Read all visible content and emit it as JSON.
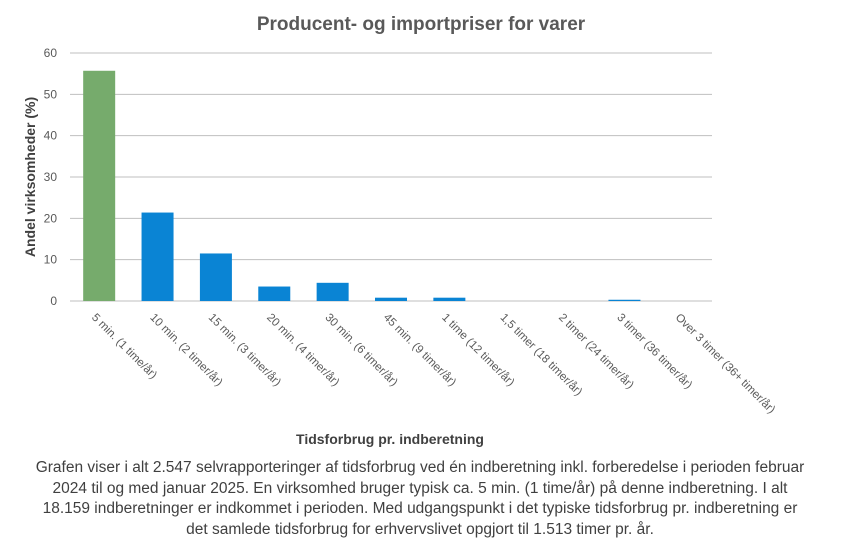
{
  "chart_data": {
    "type": "bar",
    "title": "Producent- og importpriser for varer",
    "xlabel": "Tidsforbrug pr. indberetning",
    "ylabel": "Andel virksomheder  (%)",
    "ylim": [
      0,
      60
    ],
    "yticks": [
      0,
      10,
      20,
      30,
      40,
      50,
      60
    ],
    "grid": true,
    "categories": [
      "5 min. (1 time/år)",
      "10 min. (2 timer/år)",
      "15 min. (3 timer/år)",
      "20 min. (4 timer/år)",
      "30 min. (6 timer/år)",
      "45 min. (9 timer/år)",
      "1 time (12 timer/år)",
      "1,5 timer (18 timer/år)",
      "2 timer (24 timer/år)",
      "3 timer (36 timer/år)",
      "Over 3 timer (36+ timer/år)"
    ],
    "values": [
      55.7,
      21.4,
      11.5,
      3.5,
      4.4,
      0.8,
      0.8,
      0,
      0,
      0.3,
      0
    ],
    "highlight_index": 0,
    "colors": {
      "highlight": "#76ab6c",
      "bar": "#0a84d4",
      "grid": "#bfbfbf"
    }
  },
  "caption": "Grafen viser i alt 2.547 selvrapporteringer af tidsforbrug ved én indberetning inkl. forberedelse i perioden februar 2024 til og med januar 2025. En virksomhed bruger typisk ca. 5 min. (1 time/år) på denne indberetning. I alt 18.159 indberetninger er indkommet i perioden. Med udgangspunkt i det typiske tidsforbrug pr. indberetning er det samlede tidsforbrug for erhvervslivet opgjort til 1.513 timer pr. år."
}
